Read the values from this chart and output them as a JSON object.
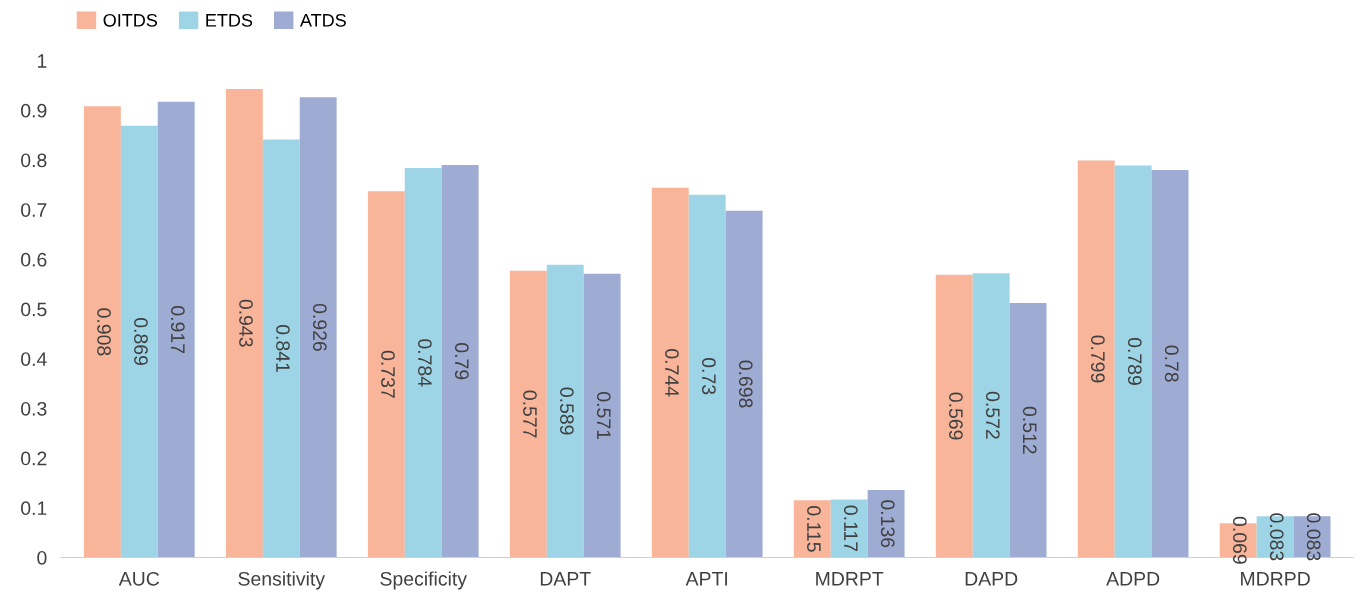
{
  "chart_data": {
    "type": "bar",
    "categories": [
      "AUC",
      "Sensitivity",
      "Specificity",
      "DAPT",
      "APTI",
      "MDRPT",
      "DAPD",
      "ADPD",
      "MDRPD"
    ],
    "series": [
      {
        "name": "OITDS",
        "color": "#f8b59a",
        "values": [
          0.908,
          0.943,
          0.737,
          0.577,
          0.744,
          0.115,
          0.569,
          0.799,
          0.069
        ]
      },
      {
        "name": "ETDS",
        "color": "#9dd5e6",
        "values": [
          0.869,
          0.841,
          0.784,
          0.589,
          0.73,
          0.117,
          0.572,
          0.789,
          0.083
        ]
      },
      {
        "name": "ATDS",
        "color": "#9eabd3",
        "values": [
          0.917,
          0.926,
          0.79,
          0.571,
          0.698,
          0.136,
          0.512,
          0.78,
          0.083
        ]
      }
    ],
    "ylim": [
      0,
      1
    ],
    "yticks": [
      0,
      0.1,
      0.2,
      0.3,
      0.4,
      0.5,
      0.6,
      0.7,
      0.8,
      0.9,
      1
    ],
    "data_labels": true,
    "grid": false,
    "legend": "top left"
  }
}
